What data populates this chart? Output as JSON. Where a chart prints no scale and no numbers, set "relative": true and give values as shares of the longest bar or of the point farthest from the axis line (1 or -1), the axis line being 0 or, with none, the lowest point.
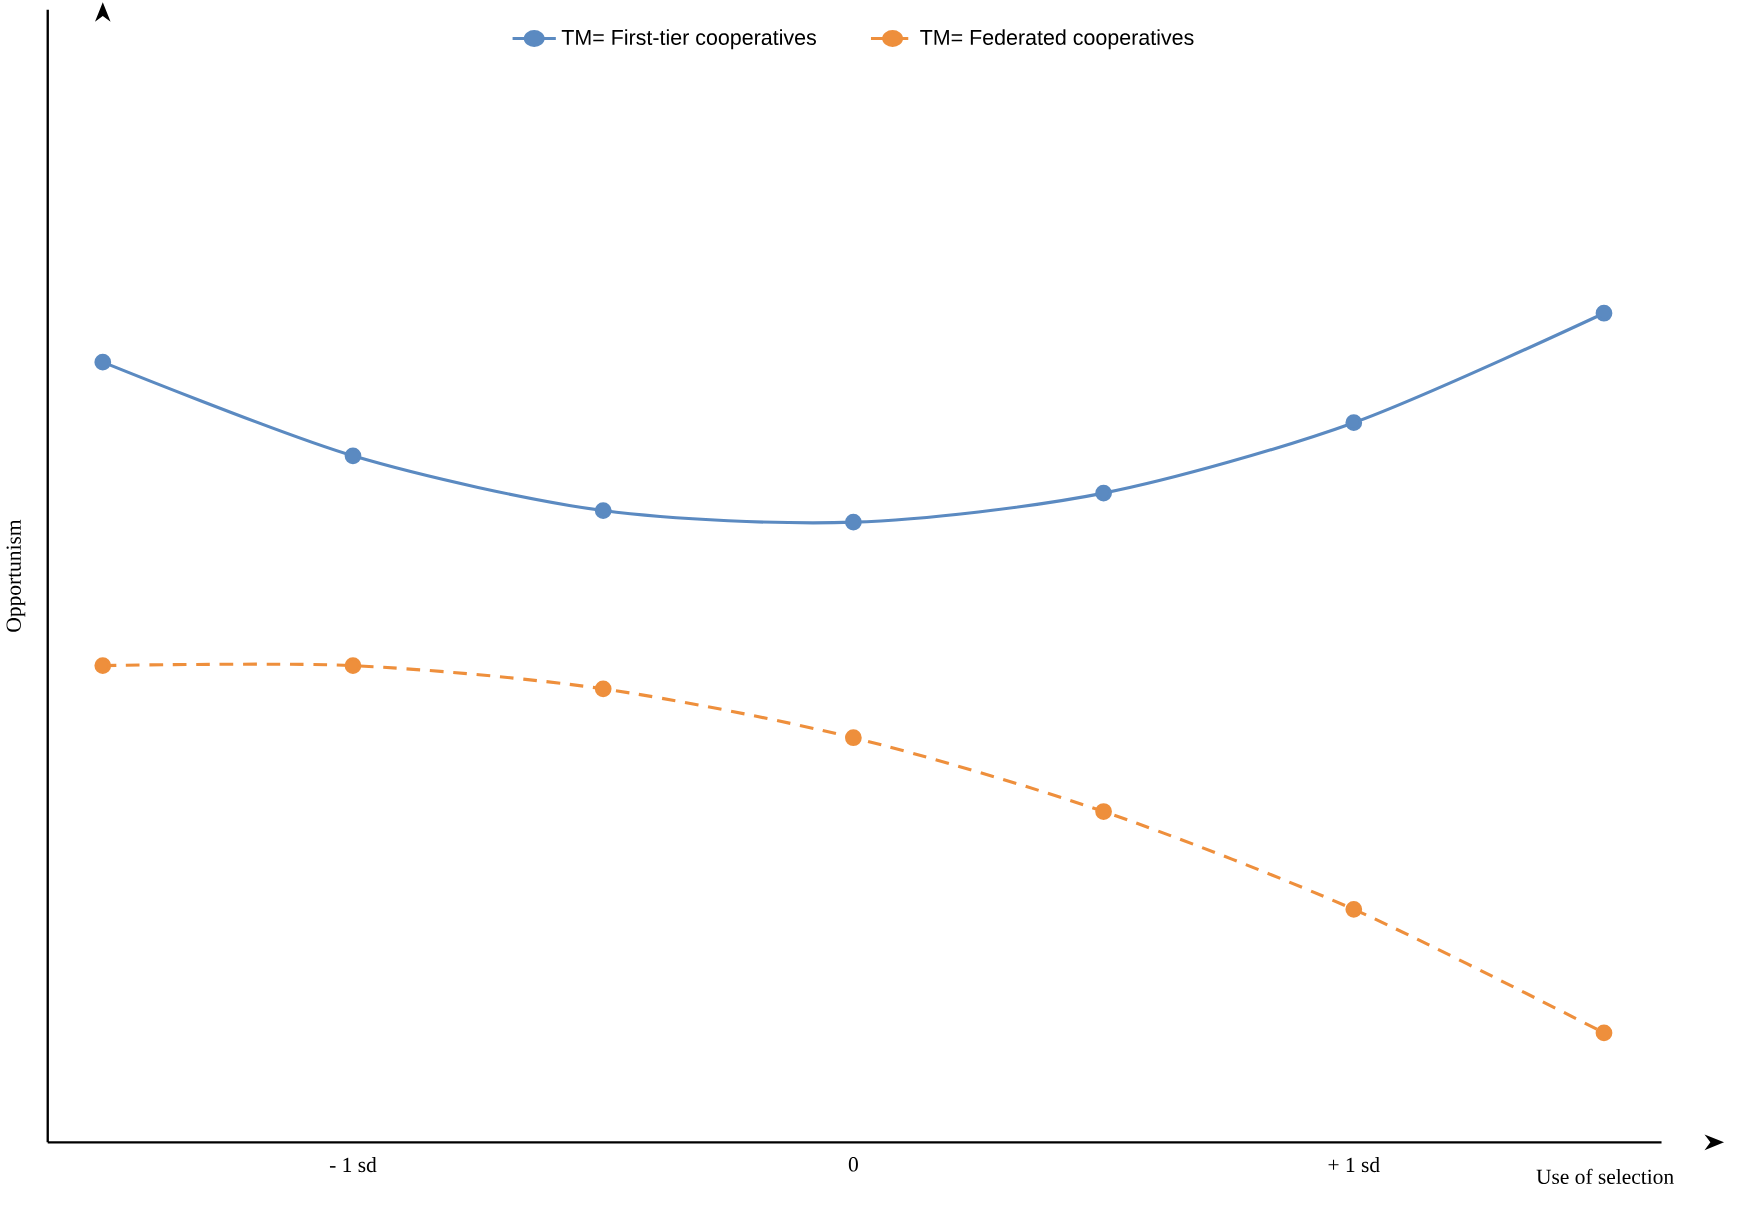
{
  "chart_data": {
    "type": "line",
    "xlabel": "Use of selection",
    "ylabel": "Opportunism",
    "categories": [
      null,
      "- 1 sd",
      null,
      "0",
      null,
      "+ 1 sd",
      null
    ],
    "relative": true,
    "legend": "top",
    "marker": "circle",
    "grid": false,
    "series": [
      {
        "name": "TM= First-tier cooperatives",
        "color": "#5b8ac1",
        "line_style": "solid",
        "values": [
          0.941,
          0.828,
          0.762,
          0.748,
          0.783,
          0.868,
          1
        ]
      },
      {
        "name": "TM= Federated cooperatives",
        "color": "#ee8f3c",
        "line_style": "dashed",
        "values": [
          0.575,
          0.575,
          0.547,
          0.488,
          0.399,
          0.281,
          0.132
        ]
      }
    ]
  }
}
